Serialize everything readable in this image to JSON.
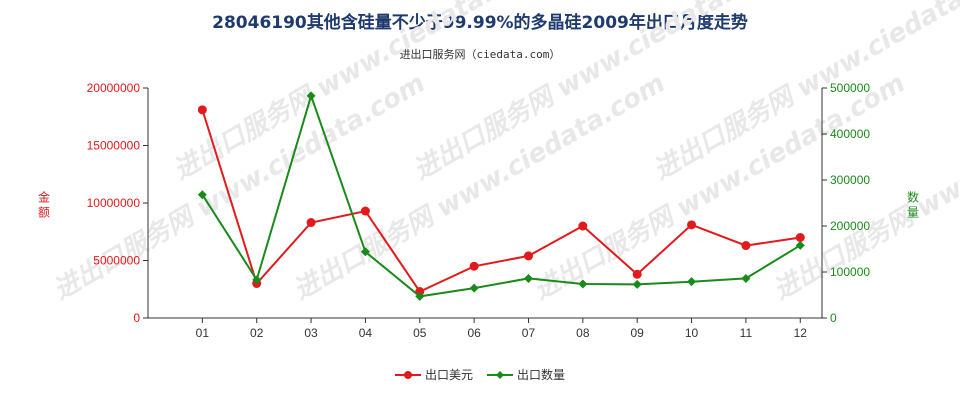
{
  "header": {
    "title": "28046190其他含硅量不少于99.99%的多晶硅2009年出口月度走势",
    "subtitle": "进出口服务网（ciedata.com）"
  },
  "watermark": "进出口服务网 www.ciedata.com",
  "colors": {
    "left_series": "#e31a1c",
    "right_series": "#1a8a1a",
    "axis": "#333333"
  },
  "chart_data": {
    "type": "line",
    "title": "28046190其他含硅量不少于99.99%的多晶硅2009年出口月度走势",
    "subtitle": "进出口服务网（ciedata.com）",
    "categories": [
      "01",
      "02",
      "03",
      "04",
      "05",
      "06",
      "07",
      "08",
      "09",
      "10",
      "11",
      "12"
    ],
    "y_left": {
      "label": "金额",
      "ylim": [
        0,
        20000000
      ],
      "ticks": [
        "0",
        "5000000",
        "10000000",
        "15000000",
        "20000000"
      ]
    },
    "y_right": {
      "label": "数量",
      "ylim": [
        0,
        500000
      ],
      "ticks": [
        "0",
        "100000",
        "200000",
        "300000",
        "400000",
        "500000"
      ]
    },
    "series": [
      {
        "name": "出口美元",
        "axis": "left",
        "color": "#e31a1c",
        "values": [
          18100000,
          3000000,
          8300000,
          9300000,
          2300000,
          4500000,
          5400000,
          8000000,
          3800000,
          8100000,
          6300000,
          7000000
        ]
      },
      {
        "name": "出口数量",
        "axis": "right",
        "color": "#1a8a1a",
        "values": [
          268000,
          83000,
          483000,
          144000,
          47000,
          65000,
          86000,
          74000,
          73000,
          79000,
          86000,
          158000
        ]
      }
    ],
    "grid": false,
    "legend_position": "bottom-center"
  }
}
